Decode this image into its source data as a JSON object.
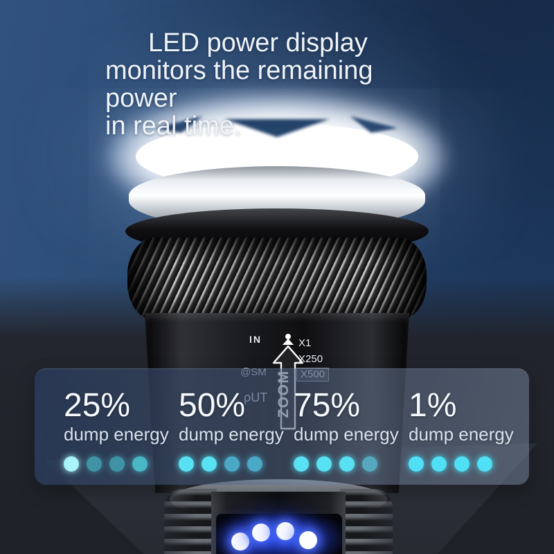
{
  "header": {
    "line1": "LED power display",
    "line2": "monitors the remaining power",
    "line3": "in real time."
  },
  "flashlight": {
    "markings": {
      "in": "IN",
      "x1": "X1",
      "x250": "X250",
      "x500": "X500",
      "range": "@SM",
      "out": "ρUT",
      "zoom_label": "ZOOM"
    },
    "led_display": {
      "led_count": 4,
      "led_color": "#ffffff",
      "glow_color": "#2f4bff"
    }
  },
  "panel": {
    "cards": [
      {
        "percent": "25%",
        "label": "dump energy",
        "dots": [
          "#a9f3fd",
          "#3f93a4",
          "#3f93a4",
          "#49b7c6"
        ]
      },
      {
        "percent": "50%",
        "label": "dump energy",
        "dots": [
          "#58e0f3",
          "#58e0f3",
          "#4aa9c7",
          "#4aa9c7"
        ]
      },
      {
        "percent": "75%",
        "label": "dump energy",
        "dots": [
          "#58e0f3",
          "#58e0f3",
          "#58e0f3",
          "#55a8bd"
        ]
      },
      {
        "percent": "1%",
        "label": "dump energy",
        "dots": [
          "#4fe0f6",
          "#4fe0f6",
          "#4fe0f6",
          "#4fe0f6"
        ]
      }
    ]
  },
  "colors": {
    "accent_cyan": "#58e0f3",
    "dim_teal": "#3f93a4",
    "background_blue": "#2a4a73",
    "background_dark": "#1e2127",
    "panel_tint": "#5f6f8b"
  }
}
